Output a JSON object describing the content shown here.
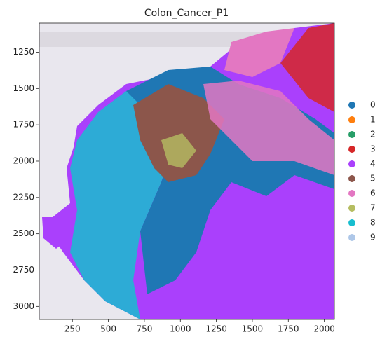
{
  "chart_data": {
    "type": "spatial",
    "title": "Colon_Cancer_P1",
    "xlim": [
      20,
      2070
    ],
    "xticks": [
      250,
      500,
      750,
      1000,
      1250,
      1500,
      1750,
      2000
    ],
    "ylim": [
      1050,
      3090
    ],
    "y_inverted": true,
    "yticks": [
      1250,
      1500,
      1750,
      2000,
      2250,
      2500,
      2750,
      3000
    ],
    "legend": {
      "position": "right",
      "categories": [
        "0",
        "1",
        "2",
        "3",
        "4",
        "5",
        "6",
        "7",
        "8",
        "9"
      ],
      "colors": [
        "#1f77b4",
        "#ff7f0e",
        "#279e68",
        "#d62728",
        "#aa40fc",
        "#8c564b",
        "#e377c2",
        "#b5bd61",
        "#17becf",
        "#aec7e8"
      ]
    }
  }
}
